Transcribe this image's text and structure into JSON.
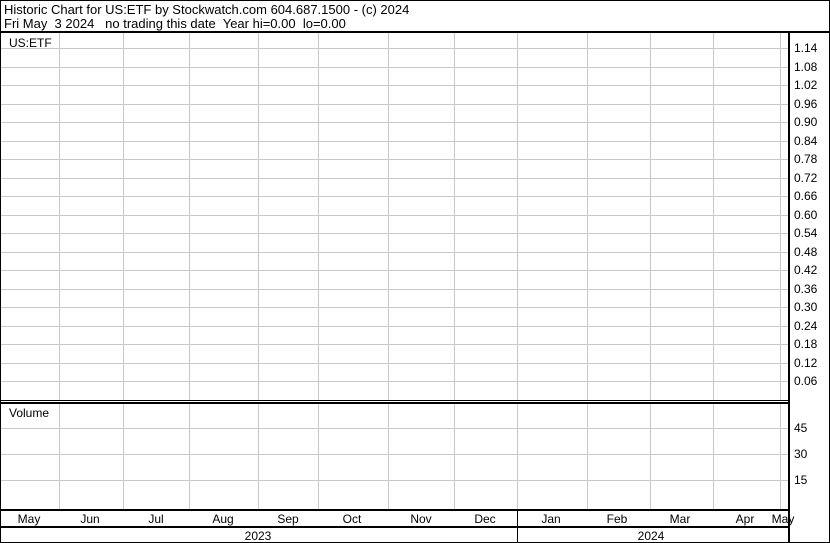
{
  "header": {
    "title": "Historic Chart for US:ETF by Stockwatch.com 604.687.1500 - (c) 2024",
    "subtitle": "Fri May  3 2024   no trading this date  Year hi=0.00  lo=0.00"
  },
  "chart_data": [
    {
      "type": "line",
      "title": "US:ETF",
      "y_ticks": [
        "1.14",
        "1.08",
        "1.02",
        "0.96",
        "0.90",
        "0.84",
        "0.78",
        "0.72",
        "0.66",
        "0.60",
        "0.54",
        "0.48",
        "0.42",
        "0.36",
        "0.30",
        "0.24",
        "0.18",
        "0.12",
        "0.06"
      ],
      "ylim": [
        0,
        1.17
      ],
      "x_ticks": [
        "May",
        "Jun",
        "Jul",
        "Aug",
        "Sep",
        "Oct",
        "Nov",
        "Dec",
        "Jan",
        "Feb",
        "Mar",
        "Apr",
        "May"
      ],
      "x_years": [
        "2023",
        "2024"
      ],
      "grid": true,
      "series": []
    },
    {
      "type": "bar",
      "title": "Volume",
      "y_ticks": [
        "45",
        "30",
        "15"
      ],
      "grid": true,
      "series": []
    }
  ]
}
